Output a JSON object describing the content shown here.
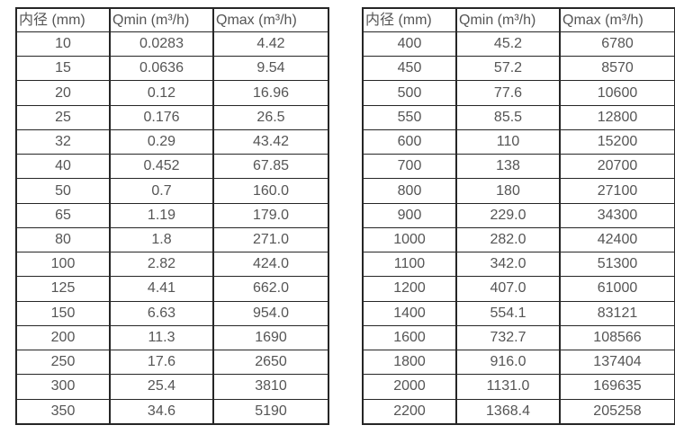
{
  "colors": {
    "border": "#262626",
    "text": "#555555",
    "background": "#ffffff"
  },
  "chart_data": [
    {
      "type": "table",
      "title": "",
      "columns": [
        "内径 (mm)",
        "Qmin (m³/h)",
        "Qmax (m³/h)"
      ],
      "rows": [
        [
          "10",
          "0.0283",
          "4.42"
        ],
        [
          "15",
          "0.0636",
          "9.54"
        ],
        [
          "20",
          "0.12",
          "16.96"
        ],
        [
          "25",
          "0.176",
          "26.5"
        ],
        [
          "32",
          "0.29",
          "43.42"
        ],
        [
          "40",
          "0.452",
          "67.85"
        ],
        [
          "50",
          "0.7",
          "160.0"
        ],
        [
          "65",
          "1.19",
          "179.0"
        ],
        [
          "80",
          "1.8",
          "271.0"
        ],
        [
          "100",
          "2.82",
          "424.0"
        ],
        [
          "125",
          "4.41",
          "662.0"
        ],
        [
          "150",
          "6.63",
          "954.0"
        ],
        [
          "200",
          "11.3",
          "1690"
        ],
        [
          "250",
          "17.6",
          "2650"
        ],
        [
          "300",
          "25.4",
          "3810"
        ],
        [
          "350",
          "34.6",
          "5190"
        ]
      ]
    },
    {
      "type": "table",
      "title": "",
      "columns": [
        "内径 (mm)",
        "Qmin (m³/h)",
        "Qmax (m³/h)"
      ],
      "rows": [
        [
          "400",
          "45.2",
          "6780"
        ],
        [
          "450",
          "57.2",
          "8570"
        ],
        [
          "500",
          "77.6",
          "10600"
        ],
        [
          "550",
          "85.5",
          "12800"
        ],
        [
          "600",
          "110",
          "15200"
        ],
        [
          "700",
          "138",
          "20700"
        ],
        [
          "800",
          "180",
          "27100"
        ],
        [
          "900",
          "229.0",
          "34300"
        ],
        [
          "1000",
          "282.0",
          "42400"
        ],
        [
          "1100",
          "342.0",
          "51300"
        ],
        [
          "1200",
          "407.0",
          "61000"
        ],
        [
          "1400",
          "554.1",
          "83121"
        ],
        [
          "1600",
          "732.7",
          "108566"
        ],
        [
          "1800",
          "916.0",
          "137404"
        ],
        [
          "2000",
          "1131.0",
          "169635"
        ],
        [
          "2200",
          "1368.4",
          "205258"
        ]
      ]
    }
  ]
}
